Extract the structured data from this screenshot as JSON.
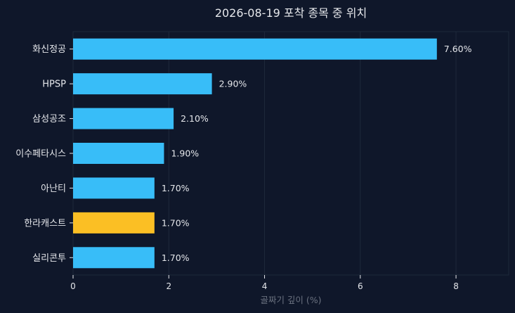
{
  "chart_data": {
    "type": "bar",
    "orientation": "horizontal",
    "title": "2026-08-19 포착 종목 중 위치",
    "xlabel": "골짜기 깊이 (%)",
    "ylabel": "",
    "xlim": [
      0,
      9.1
    ],
    "xticks": [
      0,
      2,
      4,
      6,
      8
    ],
    "grid": true,
    "categories": [
      "화신정공",
      "HPSP",
      "삼성공조",
      "이수페타시스",
      "아난티",
      "한라캐스트",
      "실리콘투"
    ],
    "values": [
      7.6,
      2.9,
      2.1,
      1.9,
      1.7,
      1.7,
      1.7
    ],
    "value_labels": [
      "7.60%",
      "2.90%",
      "2.10%",
      "1.90%",
      "1.70%",
      "1.70%",
      "1.70%"
    ],
    "highlight": "한라캐스트",
    "colors": {
      "bar": "#38bdf8",
      "highlight": "#fbbf24",
      "background": "#0f172a",
      "grid": "#1e293b",
      "frame": "#1e293b"
    }
  }
}
